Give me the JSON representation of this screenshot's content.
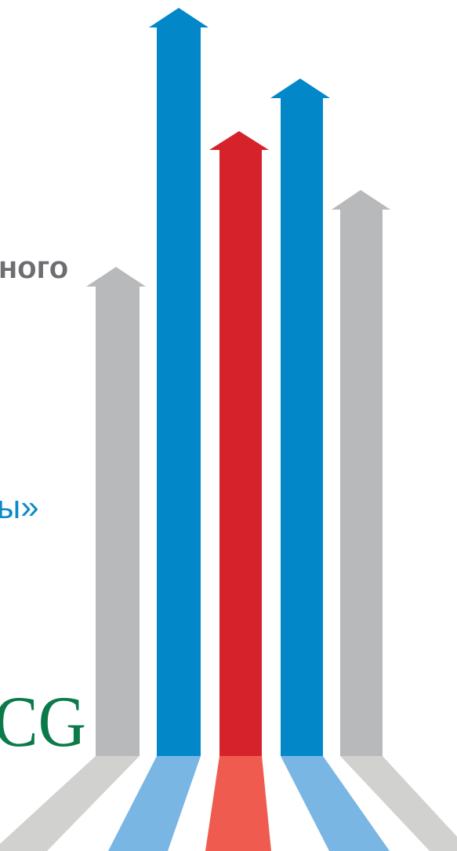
{
  "title_fragment": "ного",
  "subtitle_fragment": "ы»",
  "logo_fragment": "CG"
}
